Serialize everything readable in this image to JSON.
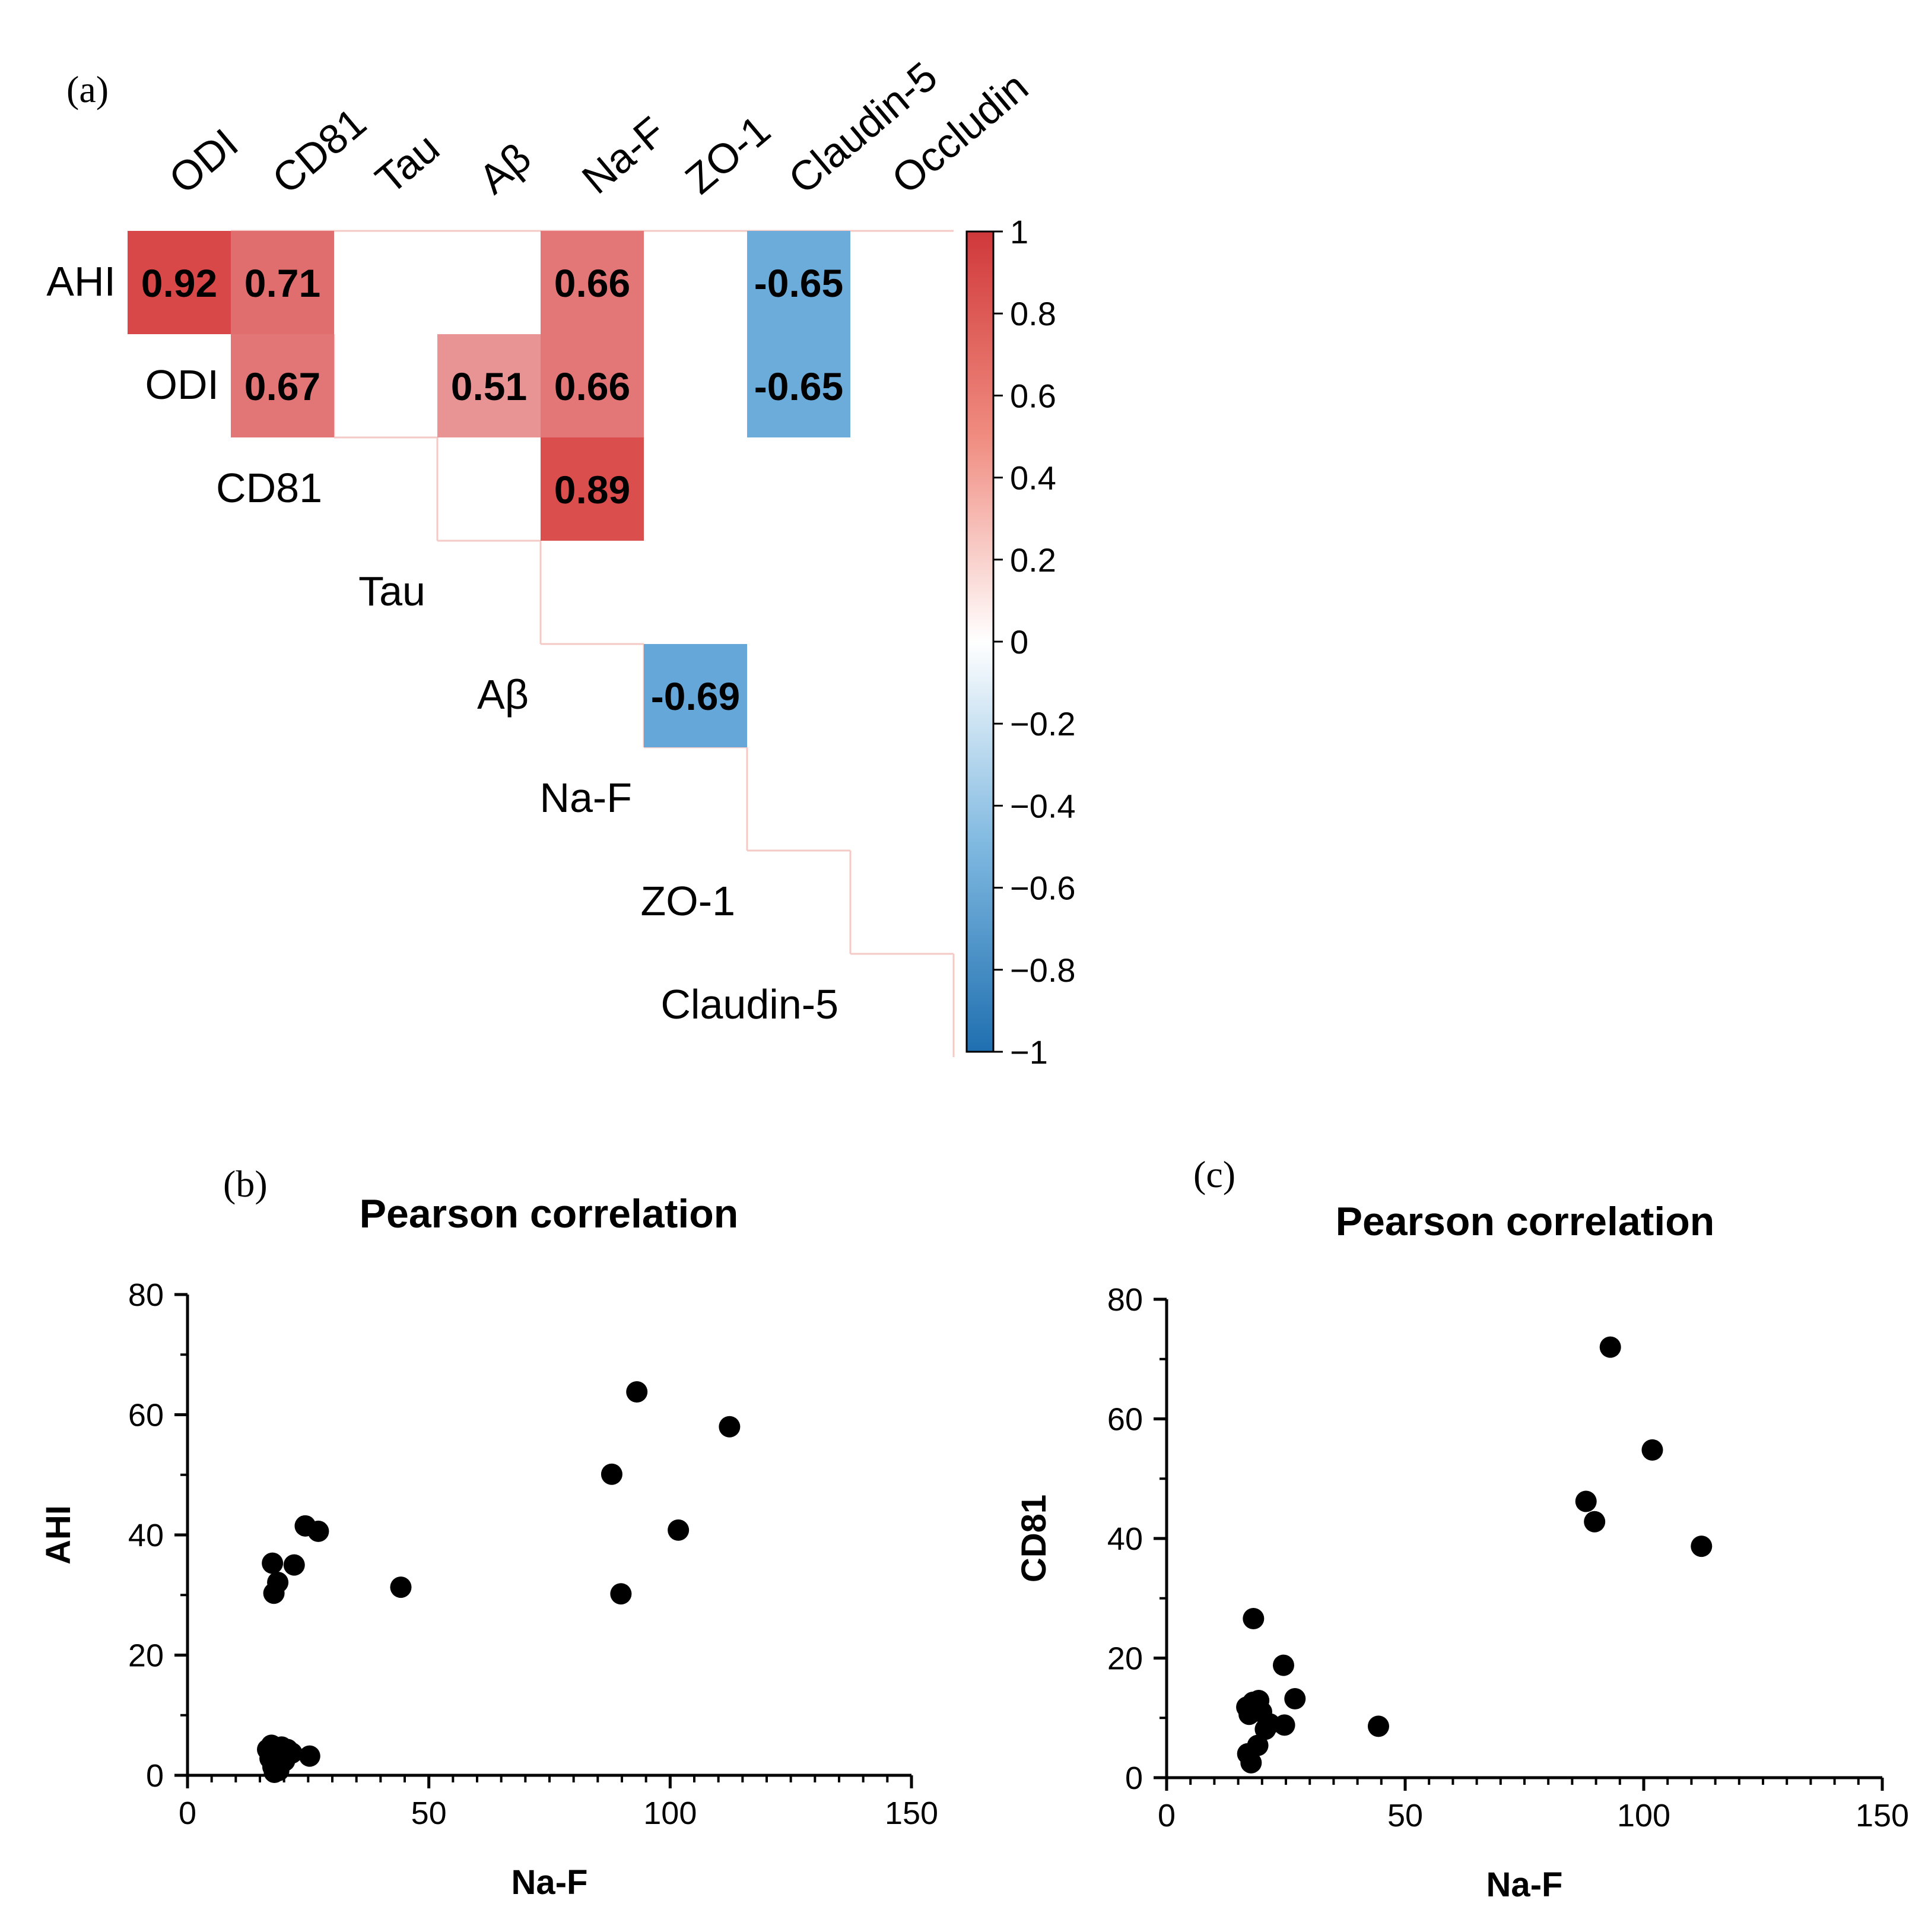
{
  "panels": {
    "a": {
      "label": "(a)"
    },
    "b": {
      "label": "(b)"
    },
    "c": {
      "label": "(c)"
    }
  },
  "colors": {
    "positive": "#d64543",
    "negative": "#3a8fcb",
    "text": "#000000"
  },
  "chart_data": [
    {
      "type": "heatmap",
      "panel": "(a)",
      "columns": [
        "ODI",
        "CD81",
        "Tau",
        "Aβ",
        "Na-F",
        "ZO-1",
        "Claudin-5",
        "Occludin"
      ],
      "rows": [
        "AHI",
        "ODI",
        "CD81",
        "Tau",
        "Aβ",
        "Na-F",
        "ZO-1",
        "Claudin-5"
      ],
      "cells": [
        {
          "row": "AHI",
          "col": "ODI",
          "value": 0.92,
          "label": "0.92"
        },
        {
          "row": "AHI",
          "col": "CD81",
          "value": 0.71,
          "label": "0.71"
        },
        {
          "row": "AHI",
          "col": "Na-F",
          "value": 0.66,
          "label": "0.66"
        },
        {
          "row": "AHI",
          "col": "Claudin-5",
          "value": -0.65,
          "label": "-0.65"
        },
        {
          "row": "ODI",
          "col": "CD81",
          "value": 0.67,
          "label": "0.67"
        },
        {
          "row": "ODI",
          "col": "Aβ",
          "value": 0.51,
          "label": "0.51"
        },
        {
          "row": "ODI",
          "col": "Na-F",
          "value": 0.66,
          "label": "0.66"
        },
        {
          "row": "ODI",
          "col": "Claudin-5",
          "value": -0.65,
          "label": "-0.65"
        },
        {
          "row": "CD81",
          "col": "Na-F",
          "value": 0.89,
          "label": "0.89"
        },
        {
          "row": "Aβ",
          "col": "ZO-1",
          "value": -0.69,
          "label": "-0.69"
        }
      ],
      "colorbar": {
        "range": [
          -1,
          1
        ],
        "ticks": [
          1,
          0.8,
          0.6,
          0.4,
          0.2,
          0,
          -0.2,
          -0.4,
          -0.6,
          -0.8,
          -1
        ],
        "tick_labels": [
          "1",
          "0.8",
          "0.6",
          "0.4",
          "0.2",
          "0",
          "−0.2",
          "−0.4",
          "−0.6",
          "−0.8",
          "−1"
        ]
      }
    },
    {
      "type": "scatter",
      "panel": "(b)",
      "title": "Pearson correlation",
      "xlabel": "Na-F",
      "ylabel": "AHI",
      "xlim": [
        0,
        150
      ],
      "ylim": [
        0,
        80
      ],
      "xticks": [
        0,
        50,
        100,
        150
      ],
      "yticks": [
        0,
        20,
        40,
        60,
        80
      ],
      "points": [
        [
          17.6,
          35.3
        ],
        [
          18.7,
          32.1
        ],
        [
          17.9,
          30.3
        ],
        [
          22.1,
          35.0
        ],
        [
          24.4,
          41.5
        ],
        [
          27.1,
          40.6
        ],
        [
          44.2,
          31.3
        ],
        [
          87.9,
          50.1
        ],
        [
          93.1,
          63.8
        ],
        [
          89.8,
          30.2
        ],
        [
          101.7,
          40.8
        ],
        [
          112.3,
          58.0
        ],
        [
          16.6,
          4.3
        ],
        [
          17.1,
          2.8
        ],
        [
          17.4,
          5.0
        ],
        [
          17.7,
          1.4
        ],
        [
          18.3,
          3.6
        ],
        [
          18.9,
          0.8
        ],
        [
          19.5,
          4.7
        ],
        [
          20.1,
          2.4
        ],
        [
          20.7,
          4.3
        ],
        [
          21.6,
          3.7
        ],
        [
          25.3,
          3.2
        ],
        [
          18.0,
          0.5
        ]
      ]
    },
    {
      "type": "scatter",
      "panel": "(c)",
      "title": "Pearson correlation",
      "xlabel": "Na-F",
      "ylabel": "CD81",
      "xlim": [
        0,
        150
      ],
      "ylim": [
        0,
        80
      ],
      "xticks": [
        0,
        50,
        100,
        150
      ],
      "yticks": [
        0,
        20,
        40,
        60,
        80
      ],
      "points": [
        [
          18.2,
          26.6
        ],
        [
          24.5,
          18.8
        ],
        [
          26.9,
          13.2
        ],
        [
          16.8,
          11.8
        ],
        [
          17.3,
          10.6
        ],
        [
          18.1,
          12.6
        ],
        [
          19.3,
          12.9
        ],
        [
          19.9,
          11.0
        ],
        [
          21.6,
          9.0
        ],
        [
          24.7,
          8.8
        ],
        [
          20.7,
          8.1
        ],
        [
          19.1,
          5.4
        ],
        [
          17.0,
          4.0
        ],
        [
          17.7,
          2.5
        ],
        [
          44.4,
          8.6
        ],
        [
          87.9,
          46.2
        ],
        [
          89.7,
          42.8
        ],
        [
          93.0,
          72.0
        ],
        [
          101.8,
          54.8
        ],
        [
          112.1,
          38.7
        ]
      ]
    }
  ]
}
